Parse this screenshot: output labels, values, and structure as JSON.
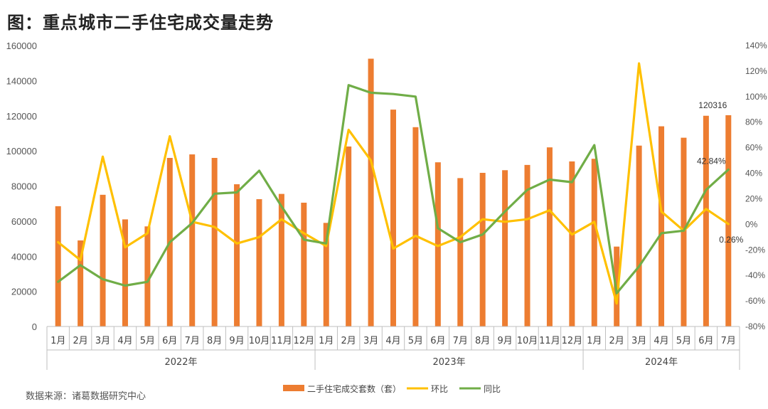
{
  "title": "图：重点城市二手住宅成交量走势",
  "source": "数据来源：诸葛数据研究中心",
  "chart_data": {
    "type": "bar",
    "categories": [
      "1月",
      "2月",
      "3月",
      "4月",
      "5月",
      "6月",
      "7月",
      "8月",
      "9月",
      "10月",
      "11月",
      "12月",
      "1月",
      "2月",
      "3月",
      "4月",
      "5月",
      "6月",
      "7月",
      "8月",
      "9月",
      "10月",
      "11月",
      "12月",
      "1月",
      "2月",
      "3月",
      "4月",
      "5月",
      "6月",
      "7月"
    ],
    "years": [
      {
        "label": "2022年",
        "start": 0,
        "end": 11
      },
      {
        "label": "2023年",
        "start": 12,
        "end": 23
      },
      {
        "label": "2024年",
        "start": 24,
        "end": 30
      }
    ],
    "series": [
      {
        "name": "二手住宅成交套数（套）",
        "type": "bar",
        "axis": "left",
        "color": "#ED7D31",
        "values": [
          68500,
          49000,
          75000,
          61000,
          57000,
          96000,
          98000,
          96000,
          81000,
          72500,
          75500,
          70500,
          59000,
          102500,
          152500,
          123500,
          113500,
          93500,
          84500,
          87500,
          89000,
          92000,
          102000,
          94000,
          95500,
          45500,
          103000,
          114000,
          107500,
          120000,
          120316
        ]
      },
      {
        "name": "环比",
        "type": "line",
        "axis": "right",
        "color": "#FFC000",
        "values": [
          -14,
          -28,
          53,
          -18,
          -7,
          69,
          2,
          -2,
          -15,
          -10,
          4,
          -7,
          -17,
          74,
          50,
          -19,
          -9,
          -17,
          -10,
          4,
          2,
          4,
          11,
          -8,
          2,
          -62,
          126,
          10,
          -5,
          12,
          0.26
        ]
      },
      {
        "name": "同比",
        "type": "line",
        "axis": "right",
        "color": "#70AD47",
        "values": [
          -45,
          -32,
          -43,
          -48,
          -45,
          -14,
          1,
          24,
          25,
          42,
          14,
          -12,
          -15,
          109,
          103,
          102,
          100,
          -3,
          -14,
          -8,
          10,
          27,
          35,
          33,
          62,
          -54,
          -33,
          -7,
          -5,
          27,
          42.84
        ]
      }
    ],
    "ylim_left": [
      0,
      160000
    ],
    "ylim_right": [
      -80,
      140
    ],
    "yticks_left": [
      "0",
      "20000",
      "40000",
      "60000",
      "80000",
      "100000",
      "120000",
      "140000",
      "160000"
    ],
    "yticks_right": [
      "-80%",
      "-60%",
      "-40%",
      "-20%",
      "0%",
      "20%",
      "40%",
      "60%",
      "80%",
      "100%",
      "120%",
      "140%"
    ],
    "annotations": [
      "120316",
      "42.84%",
      "0.26%"
    ],
    "legend": "bottom",
    "grid": false
  }
}
